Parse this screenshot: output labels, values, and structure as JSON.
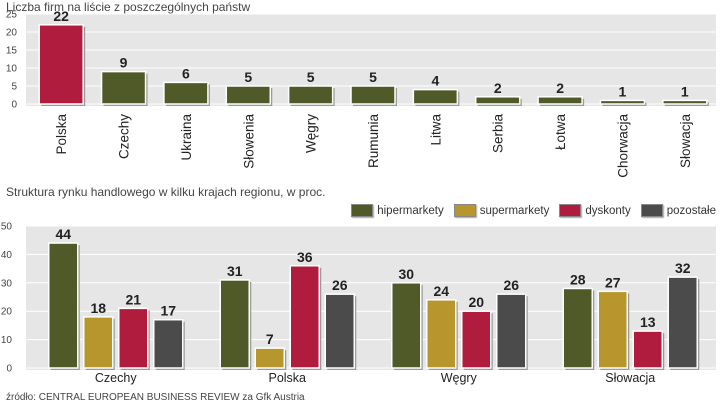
{
  "chart_data": [
    {
      "type": "bar",
      "title": "Liczba firm na liście z poszczególnych państw",
      "categories": [
        "Polska",
        "Czechy",
        "Ukraina",
        "Słowenia",
        "Węgry",
        "Rumunia",
        "Litwa",
        "Serbia",
        "Łotwa",
        "Chorwacja",
        "Słowacja"
      ],
      "values": [
        22,
        9,
        6,
        5,
        5,
        5,
        4,
        2,
        2,
        1,
        1
      ],
      "highlight_index": 0,
      "yticks": [
        0,
        5,
        10,
        15,
        20,
        25
      ],
      "ylim": [
        0,
        25
      ],
      "xlabel": "",
      "ylabel": ""
    },
    {
      "type": "bar",
      "title": "Struktura rynku handlowego w kilku krajach regionu, w proc.",
      "categories": [
        "Czechy",
        "Polska",
        "Węgry",
        "Słowacja"
      ],
      "series": [
        {
          "name": "hipermarkety",
          "values": [
            44,
            31,
            30,
            28
          ]
        },
        {
          "name": "supermarkety",
          "values": [
            18,
            7,
            24,
            27
          ]
        },
        {
          "name": "dyskonty",
          "values": [
            21,
            36,
            20,
            13
          ]
        },
        {
          "name": "pozostałe",
          "values": [
            17,
            26,
            26,
            32
          ]
        }
      ],
      "yticks": [
        0,
        10,
        20,
        30,
        40,
        50
      ],
      "ylim": [
        0,
        50
      ],
      "legend_position": "top-right",
      "xlabel": "",
      "ylabel": ""
    }
  ],
  "source": "źródło: CENTRAL EUROPEAN BUSINESS REVIEW za Gfk Austria",
  "colors": {
    "olive": "#4f5a28",
    "red": "#b01c3d",
    "gold": "#b8962e",
    "gray": "#4b4b4b",
    "panel": "#e6e6e6"
  }
}
